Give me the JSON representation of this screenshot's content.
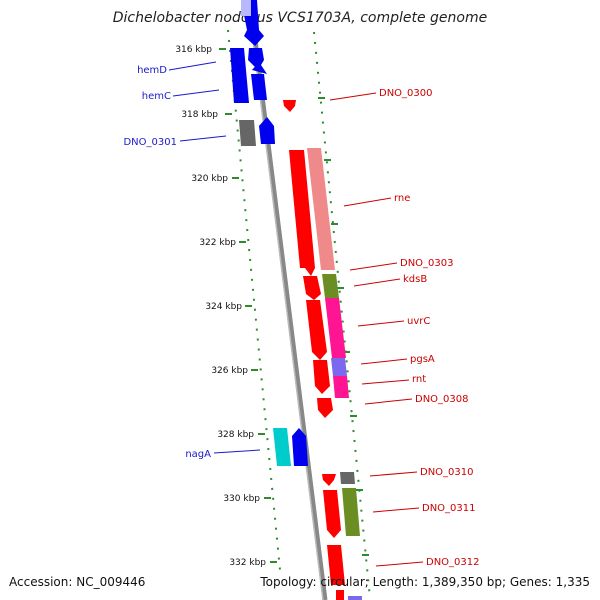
{
  "title": "Dichelobacter nodosus VCS1703A, complete genome",
  "accession": "Accession: NC_009446",
  "summary": "Topology: circular; Length: 1,389,350 bp; Genes: 1,335",
  "scale_labels": [
    "316 kbp",
    "318 kbp",
    "320 kbp",
    "322 kbp",
    "324 kbp",
    "326 kbp",
    "328 kbp",
    "330 kbp",
    "332 kbp"
  ],
  "colors": {
    "forward": "#0000ee",
    "reverse": "#ff0000",
    "reverse_light": "#f08a8a",
    "unknown": "#666666",
    "green": "#6b8e23",
    "magenta": "#ff1493",
    "purple": "#7b68ee",
    "cyan": "#00cccc",
    "backbone": "#888888",
    "tick": "#2e8b2e",
    "label_left": "#1a1acc",
    "label_right": "#cc0000"
  },
  "left_labels": [
    "hemD",
    "hemC",
    "DNO_0301",
    "nagA"
  ],
  "right_labels": [
    "DNO_0300",
    "rne",
    "DNO_0303",
    "kdsB",
    "uvrC",
    "pgsA",
    "rnt",
    "DNO_0308",
    "DNO_0310",
    "DNO_0311",
    "DNO_0312"
  ]
}
